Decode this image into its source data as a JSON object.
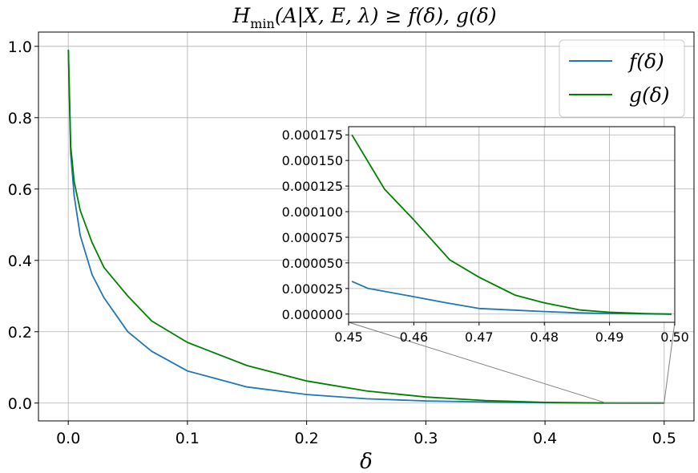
{
  "chart_data": {
    "type": "line",
    "title": "H_min(A|X, E, λ) ≥ f(δ), g(δ)",
    "title_parts": {
      "h": "H",
      "sub": "min",
      "rest": "(A|X, E, λ) ≥ f(δ), g(δ)"
    },
    "xlabel": "δ",
    "ylabel": "",
    "xlim": [
      -0.025,
      0.525
    ],
    "ylim": [
      -0.05,
      1.04
    ],
    "xticks": [
      0.0,
      0.1,
      0.2,
      0.3,
      0.4,
      0.5
    ],
    "xtick_labels": [
      "0.0",
      "0.1",
      "0.2",
      "0.3",
      "0.4",
      "0.5"
    ],
    "yticks": [
      0.0,
      0.2,
      0.4,
      0.6,
      0.8,
      1.0
    ],
    "ytick_labels": [
      "0.0",
      "0.2",
      "0.4",
      "0.6",
      "0.8",
      "1.0"
    ],
    "grid": true,
    "legend_position": "top-right",
    "series": [
      {
        "name": "f(δ)",
        "color": "#1f77b4",
        "x": [
          0.0001,
          0.002,
          0.005,
          0.01,
          0.02,
          0.03,
          0.05,
          0.07,
          0.1,
          0.15,
          0.2,
          0.25,
          0.3,
          0.35,
          0.4,
          0.45,
          0.5
        ],
        "y": [
          0.99,
          0.7,
          0.58,
          0.47,
          0.36,
          0.295,
          0.2,
          0.145,
          0.09,
          0.045,
          0.024,
          0.012,
          0.006,
          0.003,
          0.001,
          3e-05,
          0.0
        ]
      },
      {
        "name": "g(δ)",
        "color": "#008000",
        "x": [
          0.0001,
          0.002,
          0.005,
          0.01,
          0.02,
          0.03,
          0.05,
          0.07,
          0.1,
          0.15,
          0.2,
          0.25,
          0.3,
          0.35,
          0.4,
          0.45,
          0.5
        ],
        "y": [
          0.99,
          0.72,
          0.62,
          0.54,
          0.45,
          0.38,
          0.3,
          0.23,
          0.17,
          0.105,
          0.062,
          0.034,
          0.017,
          0.007,
          0.002,
          0.000175,
          0.0
        ]
      }
    ],
    "inset": {
      "xlim": [
        0.45,
        0.5
      ],
      "ylim": [
        -8e-06,
        0.000183
      ],
      "xticks": [
        0.45,
        0.46,
        0.47,
        0.48,
        0.49,
        0.5
      ],
      "xtick_labels": [
        "0.45",
        "0.46",
        "0.47",
        "0.48",
        "0.49",
        "0.50"
      ],
      "yticks": [
        0.0,
        2.5e-05,
        5e-05,
        7.5e-05,
        0.0001,
        0.000125,
        0.00015,
        0.000175
      ],
      "ytick_labels": [
        "0.000000",
        "0.000025",
        "0.000050",
        "0.000075",
        "0.000100",
        "0.000125",
        "0.000150",
        "0.000175"
      ],
      "grid": true,
      "series": [
        {
          "name": "f(δ)",
          "color": "#1f77b4",
          "x": [
            0.4505,
            0.453,
            0.46,
            0.465,
            0.47,
            0.475,
            0.48,
            0.485,
            0.49,
            0.495,
            0.4995
          ],
          "y": [
            3.2e-05,
            2.5e-05,
            1.7e-05,
            1.1e-05,
            5.5e-06,
            4e-06,
            2.5e-06,
            1.2e-06,
            6e-07,
            2e-07,
            0.0
          ]
        },
        {
          "name": "g(δ)",
          "color": "#008000",
          "x": [
            0.4505,
            0.4555,
            0.46,
            0.4655,
            0.47,
            0.4755,
            0.48,
            0.4855,
            0.49,
            0.4955,
            0.4995
          ],
          "y": [
            0.000175,
            0.000122,
            9.2e-05,
            5.3e-05,
            3.6e-05,
            1.85e-05,
            1.1e-05,
            4e-06,
            1.8e-06,
            5e-07,
            0.0
          ]
        }
      ]
    }
  }
}
